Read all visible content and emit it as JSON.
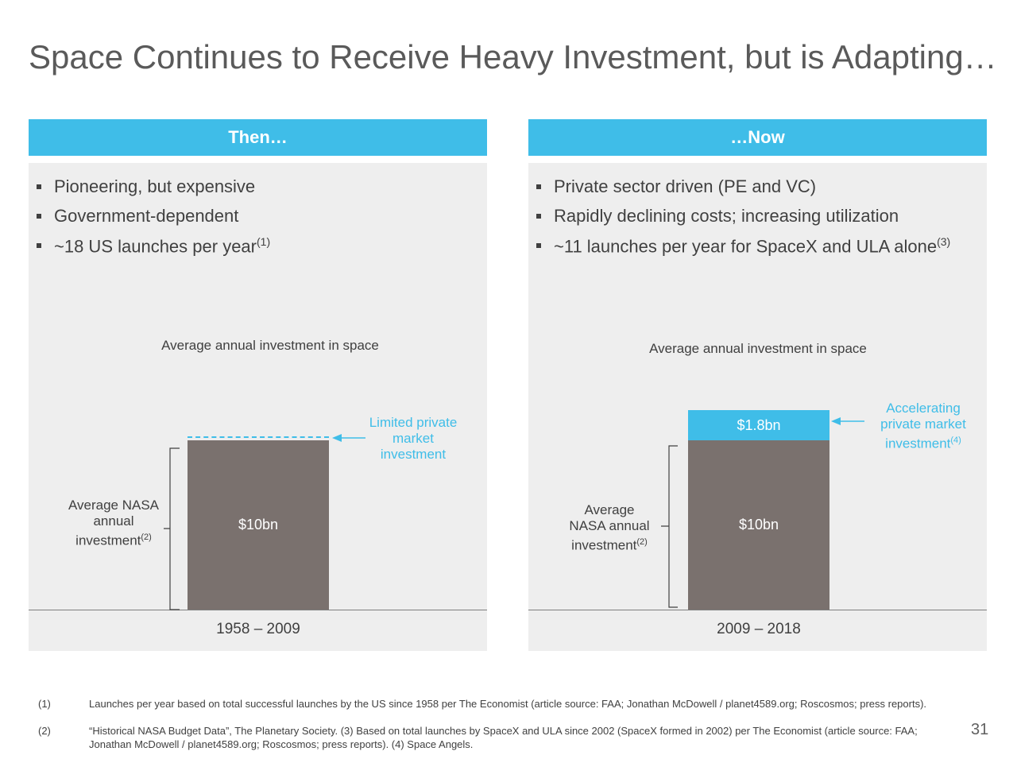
{
  "title": "Space Continues to Receive Heavy Investment, but is Adapting…",
  "then": {
    "header": "Then…",
    "bullets": [
      {
        "text": "Pioneering, but expensive",
        "sup": ""
      },
      {
        "text": "Government-dependent",
        "sup": ""
      },
      {
        "text": "~18 US launches per year",
        "sup": "(1)"
      }
    ],
    "chart_title": "Average annual investment in space",
    "bar_label": "$10bn",
    "axis_label": "1958 – 2009",
    "private_annotation": [
      "Limited private",
      "market",
      "investment"
    ],
    "nasa_annotation": [
      "Average NASA",
      "annual",
      "investment"
    ],
    "nasa_sup": "(2)"
  },
  "now": {
    "header": "…Now",
    "bullets": [
      {
        "text": "Private sector driven (PE and VC)",
        "sup": ""
      },
      {
        "text": "Rapidly declining costs; increasing utilization",
        "sup": ""
      },
      {
        "text": "~11 launches per year for SpaceX and ULA alone",
        "sup": "(3)"
      }
    ],
    "chart_title": "Average annual investment in space",
    "bar_label": "$10bn",
    "top_bar_label": "$1.8bn",
    "axis_label": "2009 – 2018",
    "private_annotation": [
      "Accelerating",
      "private market",
      "investment"
    ],
    "private_sup": "(4)",
    "nasa_annotation": [
      "Average",
      "NASA annual",
      "investment"
    ],
    "nasa_sup": "(2)"
  },
  "chart_data": [
    {
      "type": "bar",
      "categories": [
        "1958 – 2009"
      ],
      "series": [
        {
          "name": "",
          "values": [
            10
          ]
        }
      ],
      "title": "Average annual investment in space",
      "value_labels": [
        "$10bn"
      ]
    },
    {
      "type": "bar",
      "categories": [
        "2009 – 2018"
      ],
      "series": [
        {
          "name": "",
          "values": [
            10
          ]
        },
        {
          "name": "",
          "values": [
            1.8
          ]
        }
      ],
      "stacked": true,
      "title": "Average annual investment in space",
      "value_labels": [
        "$10bn",
        "$1.8bn"
      ]
    }
  ],
  "footnotes": [
    {
      "num": "(1)",
      "text": "Launches per year based on total successful launches by the US since 1958 per The Economist (article source: FAA; Jonathan McDowell / planet4589.org; Roscosmos; press reports)."
    },
    {
      "num": "(2)",
      "text": "“Historical NASA Budget Data”, The Planetary Society. (3) Based on total launches by SpaceX and ULA since 2002 (SpaceX formed in 2002) per The Economist (article source: FAA; Jonathan McDowell / planet4589.org; Roscosmos; press reports). (4) Space Angels."
    }
  ],
  "page_number": "31",
  "colors": {
    "accent": "#3fbde8",
    "bar_grey": "#7a716e",
    "panel": "#eeeeee"
  }
}
